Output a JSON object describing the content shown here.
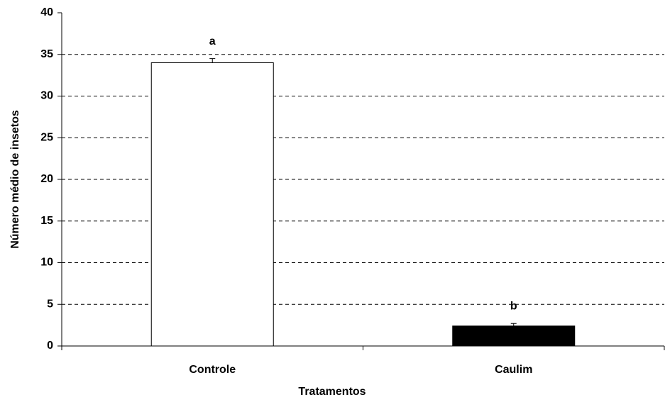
{
  "chart_data": {
    "type": "bar",
    "x_label": "Tratamentos",
    "y_label": "Número  médio de insetos",
    "categories": [
      "Controle",
      "Caulim"
    ],
    "values": [
      34,
      2.4
    ],
    "errors": [
      0.5,
      0.3
    ],
    "annotations": [
      "a",
      "b"
    ],
    "colors": [
      "#ffffff",
      "#000000"
    ],
    "ylim": [
      0,
      40
    ],
    "yticks": [
      0,
      5,
      10,
      15,
      20,
      25,
      30,
      35,
      40
    ],
    "grid": true
  }
}
